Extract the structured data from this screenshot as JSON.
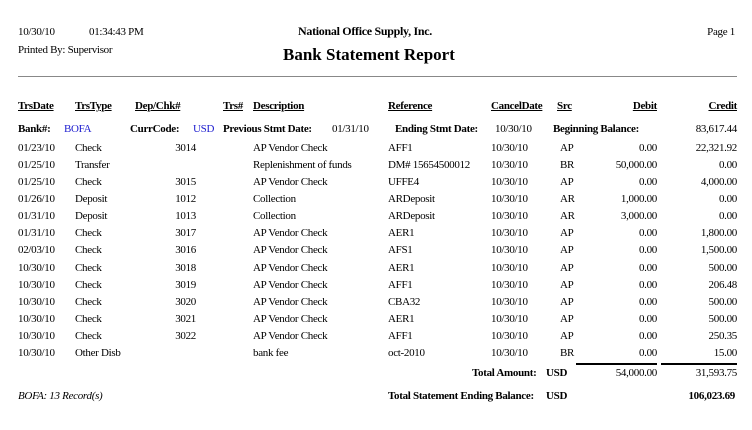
{
  "header": {
    "date": "10/30/10",
    "time": "01:34:43 PM",
    "company": "National Office Supply, Inc.",
    "page": "Page 1",
    "printed_by": "Printed By: Supervisor",
    "title": "Bank Statement Report"
  },
  "columns": [
    "TrsDate",
    "TrsType",
    "Dep/Chk#",
    "Trs#",
    "Description",
    "Reference",
    "CancelDate",
    "Src",
    "Debit",
    "Credit"
  ],
  "bank_info": {
    "bank_label": "Bank#:",
    "bank_value": "BOFA",
    "curr_label": "CurrCode:",
    "curr_value": "USD",
    "prev_label": "Previous Stmt Date:",
    "prev_value": "01/31/10",
    "end_label": "Ending Stmt Date:",
    "end_value": "10/30/10",
    "begin_label": "Beginning Balance:",
    "begin_value": "83,617.44"
  },
  "rows": [
    [
      "01/23/10",
      "Check",
      "3014",
      "",
      "AP Vendor Check",
      "AFF1",
      "10/30/10",
      "AP",
      "0.00",
      "22,321.92"
    ],
    [
      "01/25/10",
      "Transfer",
      "",
      "",
      "Replenishment of funds",
      "DM# 15654500012",
      "10/30/10",
      "BR",
      "50,000.00",
      "0.00"
    ],
    [
      "01/25/10",
      "Check",
      "3015",
      "",
      "AP Vendor Check",
      "UFFE4",
      "10/30/10",
      "AP",
      "0.00",
      "4,000.00"
    ],
    [
      "01/26/10",
      "Deposit",
      "1012",
      "",
      "Collection",
      "ARDeposit",
      "10/30/10",
      "AR",
      "1,000.00",
      "0.00"
    ],
    [
      "01/31/10",
      "Deposit",
      "1013",
      "",
      "Collection",
      "ARDeposit",
      "10/30/10",
      "AR",
      "3,000.00",
      "0.00"
    ],
    [
      "01/31/10",
      "Check",
      "3017",
      "",
      "AP Vendor Check",
      "AER1",
      "10/30/10",
      "AP",
      "0.00",
      "1,800.00"
    ],
    [
      "02/03/10",
      "Check",
      "3016",
      "",
      "AP Vendor Check",
      "AFS1",
      "10/30/10",
      "AP",
      "0.00",
      "1,500.00"
    ],
    [
      "10/30/10",
      "Check",
      "3018",
      "",
      "AP Vendor Check",
      "AER1",
      "10/30/10",
      "AP",
      "0.00",
      "500.00"
    ],
    [
      "10/30/10",
      "Check",
      "3019",
      "",
      "AP Vendor Check",
      "AFF1",
      "10/30/10",
      "AP",
      "0.00",
      "206.48"
    ],
    [
      "10/30/10",
      "Check",
      "3020",
      "",
      "AP Vendor Check",
      "CBA32",
      "10/30/10",
      "AP",
      "0.00",
      "500.00"
    ],
    [
      "10/30/10",
      "Check",
      "3021",
      "",
      "AP Vendor Check",
      "AER1",
      "10/30/10",
      "AP",
      "0.00",
      "500.00"
    ],
    [
      "10/30/10",
      "Check",
      "3022",
      "",
      "AP Vendor Check",
      "AFF1",
      "10/30/10",
      "AP",
      "0.00",
      "250.35"
    ],
    [
      "10/30/10",
      "Other Disb",
      "",
      "",
      "bank fee",
      "oct-2010",
      "10/30/10",
      "BR",
      "0.00",
      "15.00"
    ]
  ],
  "totals": {
    "label": "Total Amount:",
    "currency": "USD",
    "debit": "54,000.00",
    "credit": "31,593.75"
  },
  "footer": {
    "records": "BOFA: 13 Record(s)",
    "ending_label": "Total Statement Ending Balance:",
    "currency": "USD",
    "ending_value": "106,023.69"
  }
}
